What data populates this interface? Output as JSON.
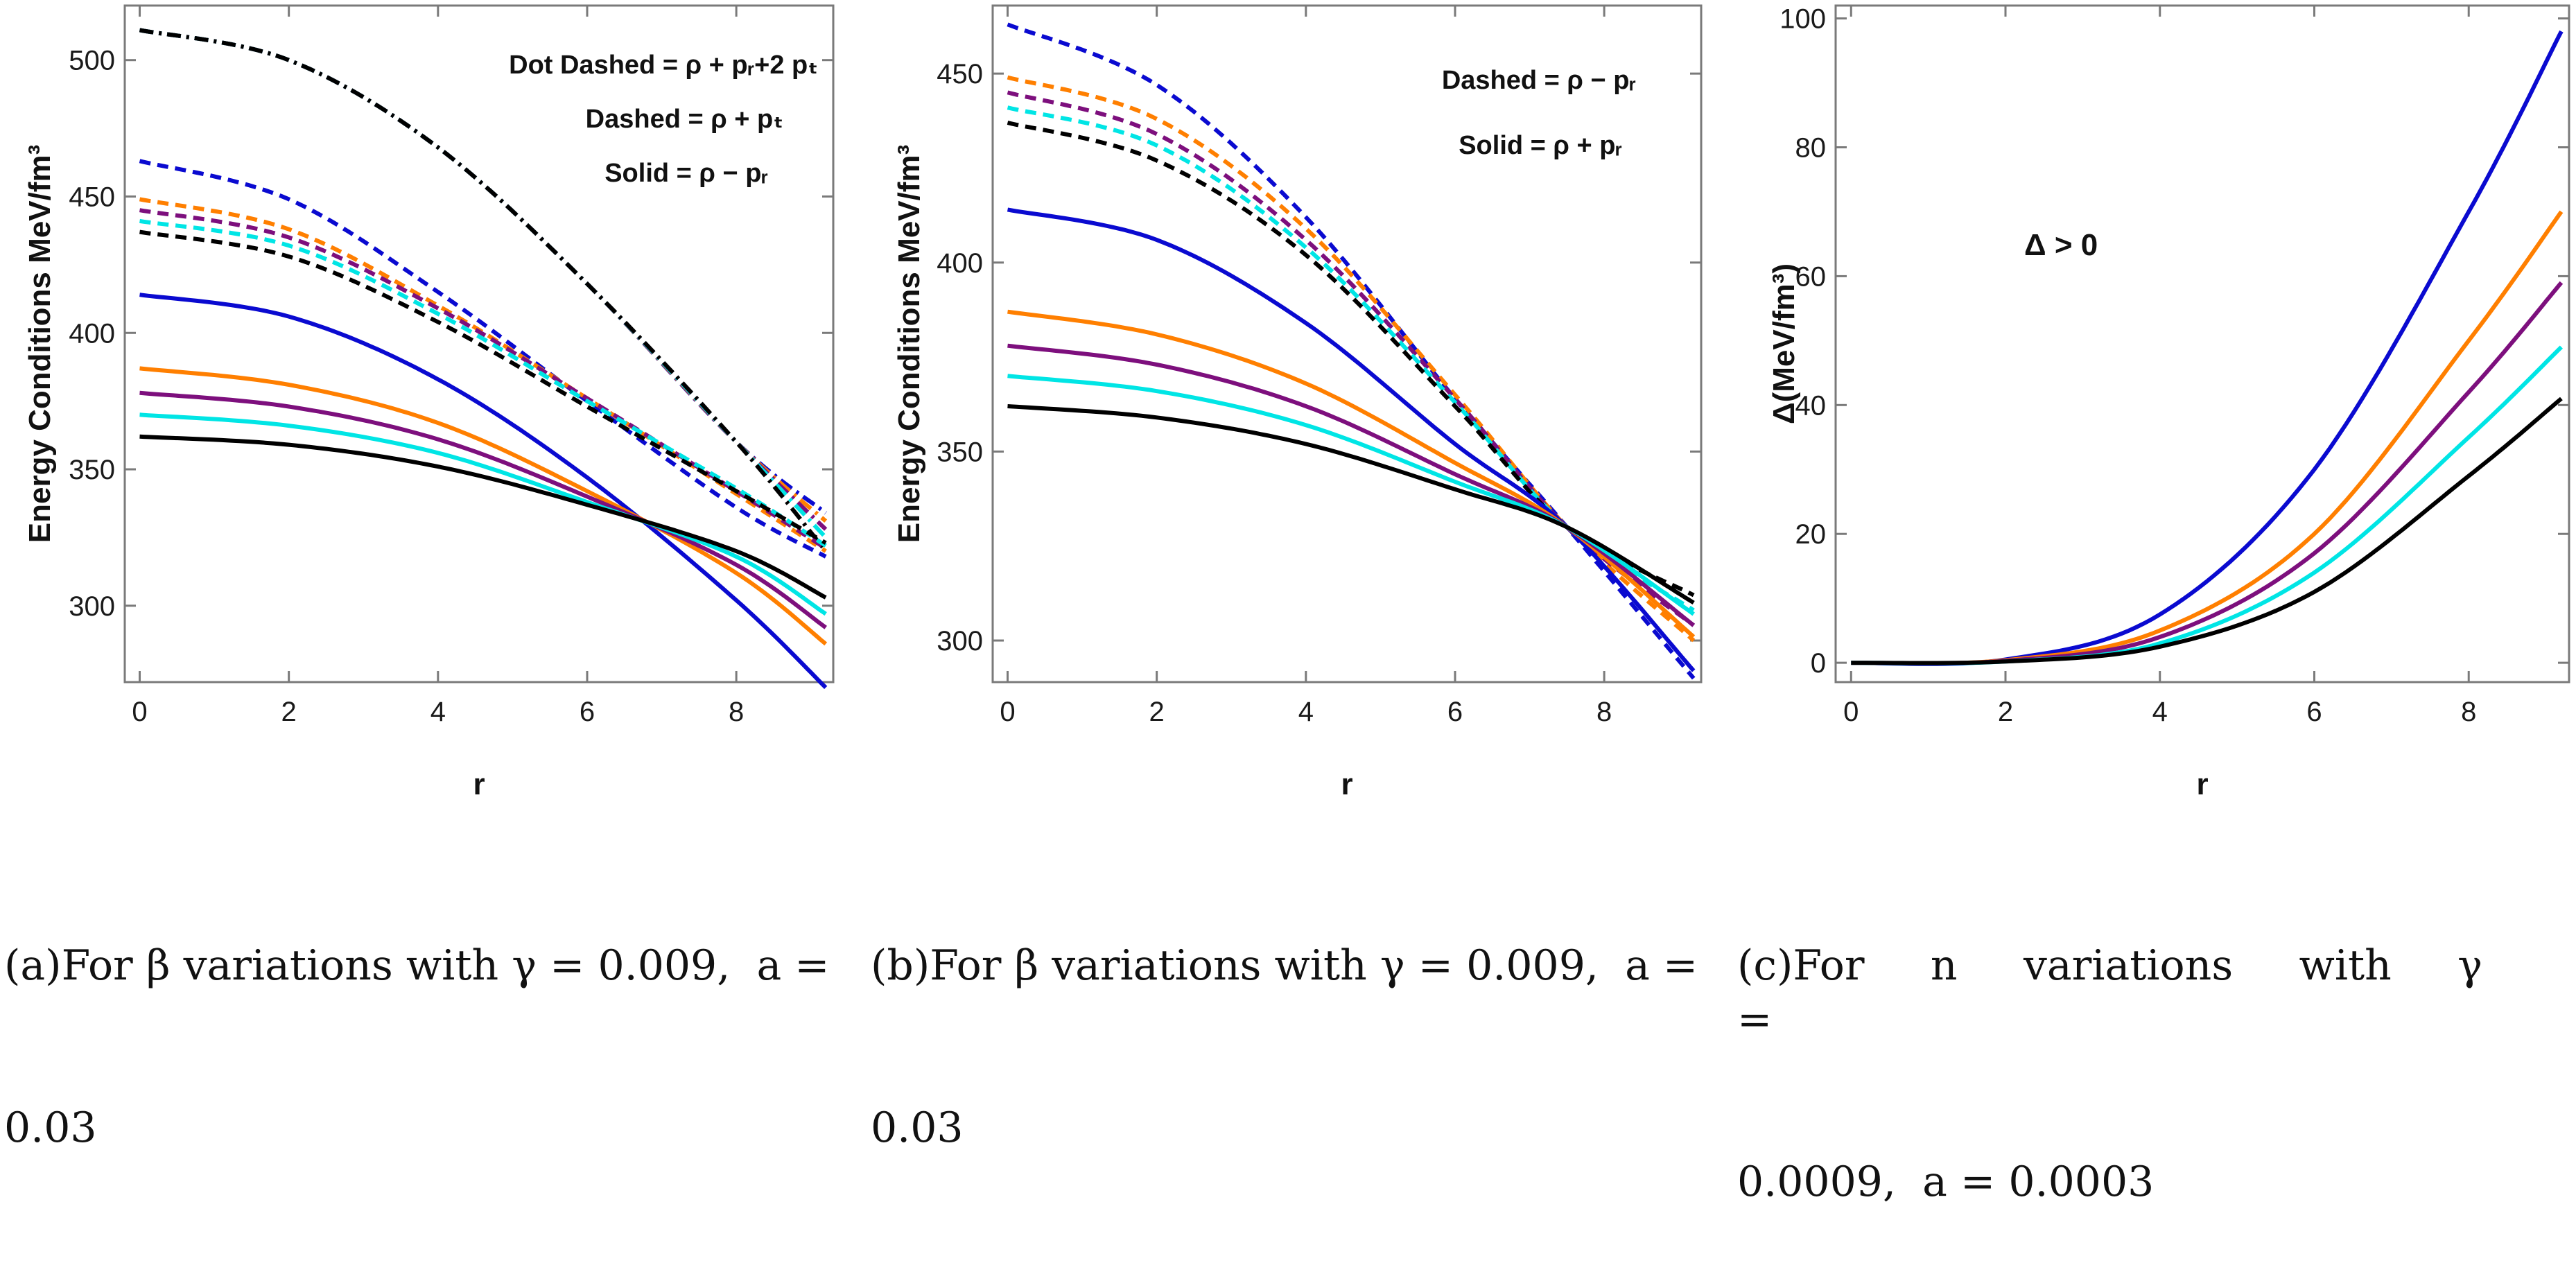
{
  "chart_data": [
    {
      "type": "line",
      "panel_id": "a",
      "xlabel": "r",
      "ylabel": "Energy Conditions MeV/fm³",
      "xlim": [
        -0.2,
        9.3
      ],
      "ylim": [
        272,
        520
      ],
      "xticks": [
        0,
        2,
        4,
        6,
        8
      ],
      "yticks": [
        300,
        350,
        400,
        450,
        500
      ],
      "grid": false,
      "annotations": [
        "Dot Dashed = ρ + pᵣ+2 pₜ",
        "Dashed = ρ + pₜ",
        "Solid = ρ − pᵣ"
      ],
      "caption": "(a)For β variations with γ = 0.009,  a = 0.03",
      "colors": [
        "#0a0ad0",
        "#ff7f00",
        "#7d0f7d",
        "#00e5e5",
        "#000000"
      ],
      "series": [
        {
          "group": "dot-dashed",
          "style": "dashdot",
          "color": "#0a0ad0",
          "x": [
            0,
            2,
            4,
            6,
            8,
            9.2
          ],
          "y": [
            511,
            500,
            468,
            418,
            360,
            334
          ]
        },
        {
          "group": "dot-dashed",
          "style": "dashdot",
          "color": "#ff7f00",
          "x": [
            0,
            2,
            4,
            6,
            8,
            9.2
          ],
          "y": [
            511,
            500,
            468,
            418,
            360,
            331
          ]
        },
        {
          "group": "dot-dashed",
          "style": "dashdot",
          "color": "#7d0f7d",
          "x": [
            0,
            2,
            4,
            6,
            8,
            9.2
          ],
          "y": [
            511,
            500,
            468,
            418,
            360,
            328
          ]
        },
        {
          "group": "dot-dashed",
          "style": "dashdot",
          "color": "#00e5e5",
          "x": [
            0,
            2,
            4,
            6,
            8,
            9.2
          ],
          "y": [
            511,
            500,
            468,
            418,
            360,
            325
          ]
        },
        {
          "group": "dot-dashed",
          "style": "dashdot",
          "color": "#000000",
          "x": [
            0,
            2,
            4,
            6,
            8,
            9.2
          ],
          "y": [
            511,
            500,
            468,
            418,
            360,
            320
          ]
        },
        {
          "group": "dashed",
          "style": "dashed",
          "color": "#0a0ad0",
          "x": [
            0,
            2,
            4,
            6,
            8,
            9.2
          ],
          "y": [
            463,
            449,
            415,
            375,
            336,
            318
          ]
        },
        {
          "group": "dashed",
          "style": "dashed",
          "color": "#ff7f00",
          "x": [
            0,
            2,
            4,
            6,
            8,
            9.2
          ],
          "y": [
            449,
            438,
            410,
            376,
            341,
            320
          ]
        },
        {
          "group": "dashed",
          "style": "dashed",
          "color": "#7d0f7d",
          "x": [
            0,
            2,
            4,
            6,
            8,
            9.2
          ],
          "y": [
            445,
            435,
            409,
            376,
            342,
            321
          ]
        },
        {
          "group": "dashed",
          "style": "dashed",
          "color": "#00e5e5",
          "x": [
            0,
            2,
            4,
            6,
            8,
            9.2
          ],
          "y": [
            441,
            432,
            407,
            375,
            343,
            322
          ]
        },
        {
          "group": "dashed",
          "style": "dashed",
          "color": "#000000",
          "x": [
            0,
            2,
            4,
            6,
            8,
            9.2
          ],
          "y": [
            437,
            428,
            404,
            373,
            342,
            323
          ]
        },
        {
          "group": "solid",
          "style": "solid",
          "color": "#0a0ad0",
          "x": [
            0,
            2,
            4,
            6,
            8,
            9.2
          ],
          "y": [
            414,
            406,
            383,
            347,
            302,
            270
          ]
        },
        {
          "group": "solid",
          "style": "solid",
          "color": "#ff7f00",
          "x": [
            0,
            2,
            4,
            6,
            8,
            9.2
          ],
          "y": [
            387,
            381,
            367,
            342,
            312,
            286
          ]
        },
        {
          "group": "solid",
          "style": "solid",
          "color": "#7d0f7d",
          "x": [
            0,
            2,
            4,
            6,
            8,
            9.2
          ],
          "y": [
            378,
            373,
            361,
            340,
            315,
            292
          ]
        },
        {
          "group": "solid",
          "style": "solid",
          "color": "#00e5e5",
          "x": [
            0,
            2,
            4,
            6,
            8,
            9.2
          ],
          "y": [
            370,
            366,
            356,
            338,
            318,
            297
          ]
        },
        {
          "group": "solid",
          "style": "solid",
          "color": "#000000",
          "x": [
            0,
            2,
            4,
            6,
            8,
            9.2
          ],
          "y": [
            362,
            359,
            351,
            337,
            320,
            303
          ]
        }
      ]
    },
    {
      "type": "line",
      "panel_id": "b",
      "xlabel": "r",
      "ylabel": "Energy Conditions MeV/fm³",
      "xlim": [
        -0.2,
        9.3
      ],
      "ylim": [
        289,
        468
      ],
      "xticks": [
        0,
        2,
        4,
        6,
        8
      ],
      "yticks": [
        300,
        350,
        400,
        450
      ],
      "grid": false,
      "annotations": [
        "Dashed = ρ − pᵣ",
        "Solid = ρ + pᵣ"
      ],
      "caption": "(b)For β variations with γ = 0.009,  a = 0.03",
      "colors": [
        "#0a0ad0",
        "#ff7f00",
        "#7d0f7d",
        "#00e5e5",
        "#000000"
      ],
      "series": [
        {
          "group": "dashed",
          "style": "dashed",
          "color": "#0a0ad0",
          "x": [
            0,
            2,
            4,
            6,
            7.5,
            9.2
          ],
          "y": [
            463,
            447,
            412,
            364,
            330,
            290
          ]
        },
        {
          "group": "dashed",
          "style": "dashed",
          "color": "#ff7f00",
          "x": [
            0,
            2,
            4,
            6,
            7.5,
            9.2
          ],
          "y": [
            449,
            438,
            409,
            365,
            330,
            300
          ]
        },
        {
          "group": "dashed",
          "style": "dashed",
          "color": "#7d0f7d",
          "x": [
            0,
            2,
            4,
            6,
            7.5,
            9.2
          ],
          "y": [
            445,
            434,
            406,
            364,
            330,
            304
          ]
        },
        {
          "group": "dashed",
          "style": "dashed",
          "color": "#00e5e5",
          "x": [
            0,
            2,
            4,
            6,
            7.5,
            9.2
          ],
          "y": [
            441,
            431,
            404,
            363,
            330,
            308
          ]
        },
        {
          "group": "dashed",
          "style": "dashed",
          "color": "#000000",
          "x": [
            0,
            2,
            4,
            6,
            7.5,
            9.2
          ],
          "y": [
            437,
            427,
            402,
            362,
            330,
            312
          ]
        },
        {
          "group": "solid",
          "style": "solid",
          "color": "#0a0ad0",
          "x": [
            0,
            2,
            4,
            6,
            7.5,
            9.2
          ],
          "y": [
            414,
            406,
            384,
            352,
            330,
            292
          ]
        },
        {
          "group": "solid",
          "style": "solid",
          "color": "#ff7f00",
          "x": [
            0,
            2,
            4,
            6,
            7.5,
            9.2
          ],
          "y": [
            387,
            381,
            368,
            347,
            330,
            301
          ]
        },
        {
          "group": "solid",
          "style": "solid",
          "color": "#7d0f7d",
          "x": [
            0,
            2,
            4,
            6,
            7.5,
            9.2
          ],
          "y": [
            378,
            373,
            362,
            344,
            330,
            304
          ]
        },
        {
          "group": "solid",
          "style": "solid",
          "color": "#00e5e5",
          "x": [
            0,
            2,
            4,
            6,
            7.5,
            9.2
          ],
          "y": [
            370,
            366,
            357,
            342,
            330,
            307
          ]
        },
        {
          "group": "solid",
          "style": "solid",
          "color": "#000000",
          "x": [
            0,
            2,
            4,
            6,
            7.5,
            9.2
          ],
          "y": [
            362,
            359,
            352,
            340,
            330,
            310
          ]
        }
      ]
    },
    {
      "type": "line",
      "panel_id": "c",
      "xlabel": "r",
      "ylabel": "Δ(MeV/fm³)",
      "xlim": [
        -0.2,
        9.3
      ],
      "ylim": [
        -3,
        102
      ],
      "xticks": [
        0,
        2,
        4,
        6,
        8
      ],
      "yticks": [
        0,
        20,
        40,
        60,
        80,
        100
      ],
      "grid": false,
      "annotations": [
        "Δ > 0"
      ],
      "caption": "(c)For  n  variations  with  γ  =  0.0009,  a = 0.0003",
      "colors": [
        "#0a0ad0",
        "#ff7f00",
        "#7d0f7d",
        "#00e5e5",
        "#000000"
      ],
      "series": [
        {
          "style": "solid",
          "color": "#0a0ad0",
          "x": [
            0,
            2,
            4,
            6,
            8,
            9.2
          ],
          "y": [
            0,
            0.5,
            7.5,
            30,
            70,
            98
          ]
        },
        {
          "style": "solid",
          "color": "#ff7f00",
          "x": [
            0,
            2,
            4,
            6,
            8,
            9.2
          ],
          "y": [
            0,
            0.4,
            5,
            20,
            50,
            70
          ]
        },
        {
          "style": "solid",
          "color": "#7d0f7d",
          "x": [
            0,
            2,
            4,
            6,
            8,
            9.2
          ],
          "y": [
            0,
            0.3,
            4,
            17,
            42,
            59
          ]
        },
        {
          "style": "solid",
          "color": "#00e5e5",
          "x": [
            0,
            2,
            4,
            6,
            8,
            9.2
          ],
          "y": [
            0,
            0.2,
            3,
            14,
            35,
            49
          ]
        },
        {
          "style": "solid",
          "color": "#000000",
          "x": [
            0,
            2,
            4,
            6,
            8,
            9.2
          ],
          "y": [
            0,
            0.2,
            2.5,
            11,
            29,
            41
          ]
        }
      ]
    }
  ],
  "captions": {
    "a_line1": "(a)For β variations with γ = 0.009,  a =",
    "a_line2": "0.03",
    "b_line1": "(b)For β variations with γ = 0.009,  a =",
    "b_line2": "0.03",
    "c_line1": "(c)For     n     variations     with     γ     =",
    "c_line2": "0.0009,  a = 0.0003"
  }
}
